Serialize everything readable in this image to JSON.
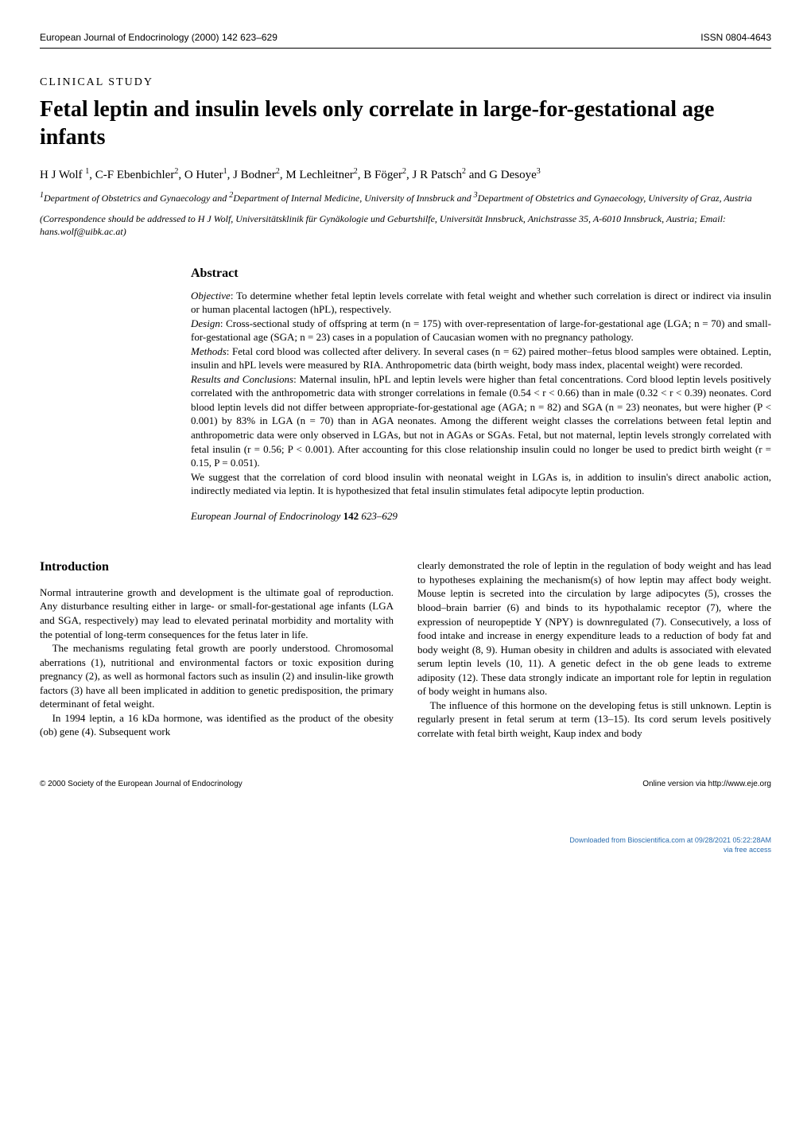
{
  "header": {
    "journal_issue": "European Journal of Endocrinology (2000) 142 623–629",
    "issn": "ISSN 0804-4643"
  },
  "study_type": "CLINICAL STUDY",
  "title": "Fetal leptin and insulin levels only correlate in large-for-gestational age infants",
  "authors_html": "H J Wolf <sup>1</sup>, C-F Ebenbichler<sup>2</sup>, O Huter<sup>1</sup>, J Bodner<sup>2</sup>, M Lechleitner<sup>2</sup>, B Föger<sup>2</sup>, J R Patsch<sup>2</sup> and G Desoye<sup>3</sup>",
  "affiliations_html": "<sup>1</sup>Department of Obstetrics and Gynaecology and <sup>2</sup>Department of Internal Medicine, University of Innsbruck and <sup>3</sup>Department of Obstetrics and Gynaecology, University of Graz, Austria",
  "correspondence": "(Correspondence should be addressed to H J Wolf, Universitätsklinik für Gynäkologie und Geburtshilfe, Universität Innsbruck, Anichstrasse 35, A-6010 Innsbruck, Austria; Email: hans.wolf@uibk.ac.at)",
  "abstract": {
    "heading": "Abstract",
    "objective_label": "Objective",
    "objective": ": To determine whether fetal leptin levels correlate with fetal weight and whether such correlation is direct or indirect via insulin or human placental lactogen (hPL), respectively.",
    "design_label": "Design",
    "design": ": Cross-sectional study of offspring at term (n = 175) with over-representation of large-for-gestational age (LGA; n = 70) and small-for-gestational age (SGA; n = 23) cases in a population of Caucasian women with no pregnancy pathology.",
    "methods_label": "Methods",
    "methods": ": Fetal cord blood was collected after delivery. In several cases (n = 62) paired mother–fetus blood samples were obtained. Leptin, insulin and hPL levels were measured by RIA. Anthropometric data (birth weight, body mass index, placental weight) were recorded.",
    "results_label": "Results and Conclusions",
    "results": ": Maternal insulin, hPL and leptin levels were higher than fetal concentrations. Cord blood leptin levels positively correlated with the anthropometric data with stronger correlations in female (0.54 < r < 0.66) than in male (0.32 < r < 0.39) neonates. Cord blood leptin levels did not differ between appropriate-for-gestational age (AGA; n = 82) and SGA (n = 23) neonates, but were higher (P < 0.001) by 83% in LGA (n = 70) than in AGA neonates. Among the different weight classes the correlations between fetal leptin and anthropometric data were only observed in LGAs, but not in AGAs or SGAs. Fetal, but not maternal, leptin levels strongly correlated with fetal insulin (r = 0.56; P < 0.001). After accounting for this close relationship insulin could no longer be used to predict birth weight (r = 0.15, P = 0.051).",
    "closing": "We suggest that the correlation of cord blood insulin with neonatal weight in LGAs is, in addition to insulin's direct anabolic action, indirectly mediated via leptin. It is hypothesized that fetal insulin stimulates fetal adipocyte leptin production.",
    "journal_ref_name": "European Journal of Endocrinology",
    "journal_ref_vol": "142",
    "journal_ref_pages": " 623–629"
  },
  "intro": {
    "heading": "Introduction",
    "left_p1": "Normal intrauterine growth and development is the ultimate goal of reproduction. Any disturbance resulting either in large- or small-for-gestational age infants (LGA and SGA, respectively) may lead to elevated perinatal morbidity and mortality with the potential of long-term consequences for the fetus later in life.",
    "left_p2": "The mechanisms regulating fetal growth are poorly understood. Chromosomal aberrations (1), nutritional and environmental factors or toxic exposition during pregnancy (2), as well as hormonal factors such as insulin (2) and insulin-like growth factors (3) have all been implicated in addition to genetic predisposition, the primary determinant of fetal weight.",
    "left_p3": "In 1994 leptin, a 16 kDa hormone, was identified as the product of the obesity (ob) gene (4). Subsequent work",
    "right_p1": "clearly demonstrated the role of leptin in the regulation of body weight and has lead to hypotheses explaining the mechanism(s) of how leptin may affect body weight. Mouse leptin is secreted into the circulation by large adipocytes (5), crosses the blood–brain barrier (6) and binds to its hypothalamic receptor (7), where the expression of neuropeptide Y (NPY) is downregulated (7). Consecutively, a loss of food intake and increase in energy expenditure leads to a reduction of body fat and body weight (8, 9). Human obesity in children and adults is associated with elevated serum leptin levels (10, 11). A genetic defect in the ob gene leads to extreme adiposity (12). These data strongly indicate an important role for leptin in regulation of body weight in humans also.",
    "right_p2": "The influence of this hormone on the developing fetus is still unknown. Leptin is regularly present in fetal serum at term (13–15). Its cord serum levels positively correlate with fetal birth weight, Kaup index and body"
  },
  "footer": {
    "copyright": "© 2000 Society of the European Journal of Endocrinology",
    "online": "Online version via http://www.eje.org"
  },
  "download": {
    "line1": "Downloaded from Bioscientifica.com at 09/28/2021 05:22:28AM",
    "line2": "via free access"
  }
}
